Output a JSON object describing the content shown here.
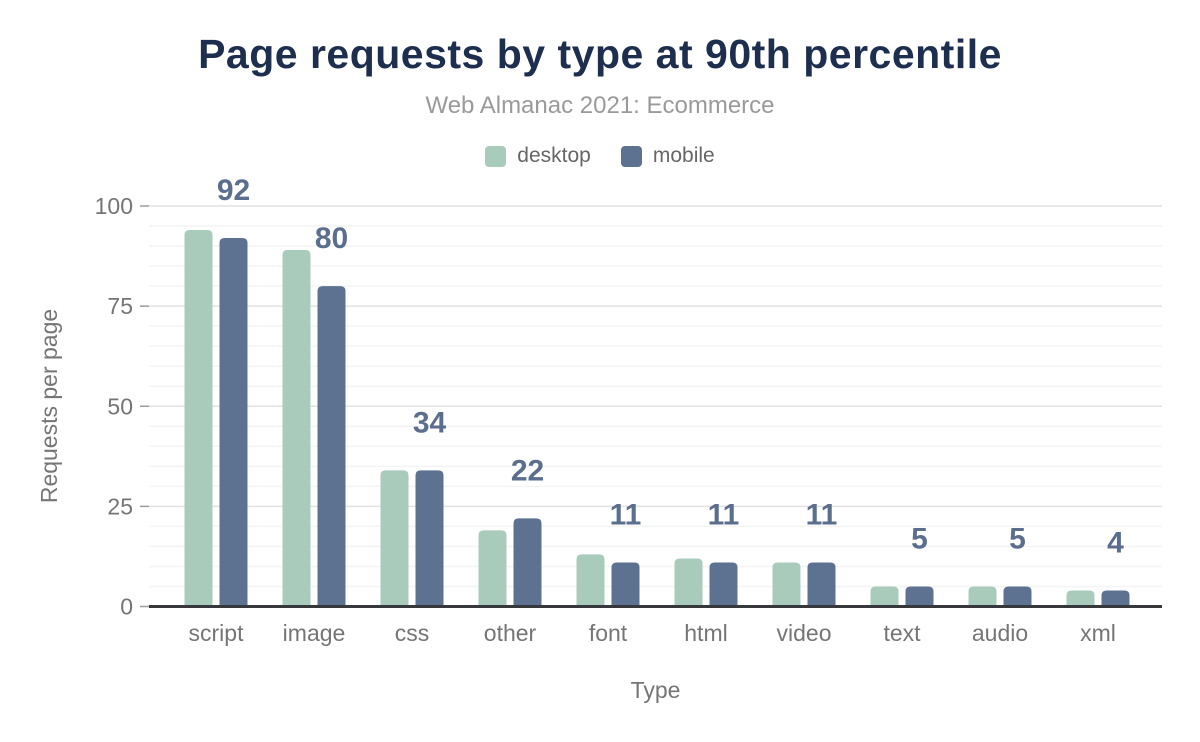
{
  "chart_data": {
    "type": "bar",
    "title": "Page requests by type at 90th percentile",
    "subtitle": "Web Almanac 2021: Ecommerce",
    "xlabel": "Type",
    "ylabel": "Requests per page",
    "categories": [
      "script",
      "image",
      "css",
      "other",
      "font",
      "html",
      "video",
      "text",
      "audio",
      "xml"
    ],
    "series": [
      {
        "name": "desktop",
        "color": "#a8cbbc",
        "values": [
          94,
          89,
          34,
          19,
          13,
          12,
          11,
          5,
          5,
          4
        ]
      },
      {
        "name": "mobile",
        "color": "#5d7190",
        "values": [
          92,
          80,
          34,
          22,
          11,
          11,
          11,
          5,
          5,
          4
        ]
      }
    ],
    "value_labels": [
      "92",
      "80",
      "34",
      "22",
      "11",
      "11",
      "11",
      "5",
      "5",
      "4"
    ],
    "value_labels_follow_series": "mobile",
    "yticks": [
      "0",
      "25",
      "50",
      "75",
      "100"
    ],
    "ylim": [
      0,
      100
    ],
    "grid": {
      "minor_step": 5,
      "major_step": 25,
      "minor_on": true,
      "major_on": true
    },
    "legend_position": "top-center"
  },
  "colors": {
    "background": "#ffffff",
    "title": "#1d2e4e",
    "subtitle": "#9a9a9a",
    "legend_text": "#666666",
    "axis_text": "#757575",
    "value_label": "#5b6e8e",
    "axis_line": "#37383b",
    "grid_major": "#e2e2e2",
    "grid_minor": "#f4f4f4",
    "tick": "#9c9c9c",
    "desktop_bar": "#a8cbbc",
    "mobile_bar": "#5d7190"
  }
}
